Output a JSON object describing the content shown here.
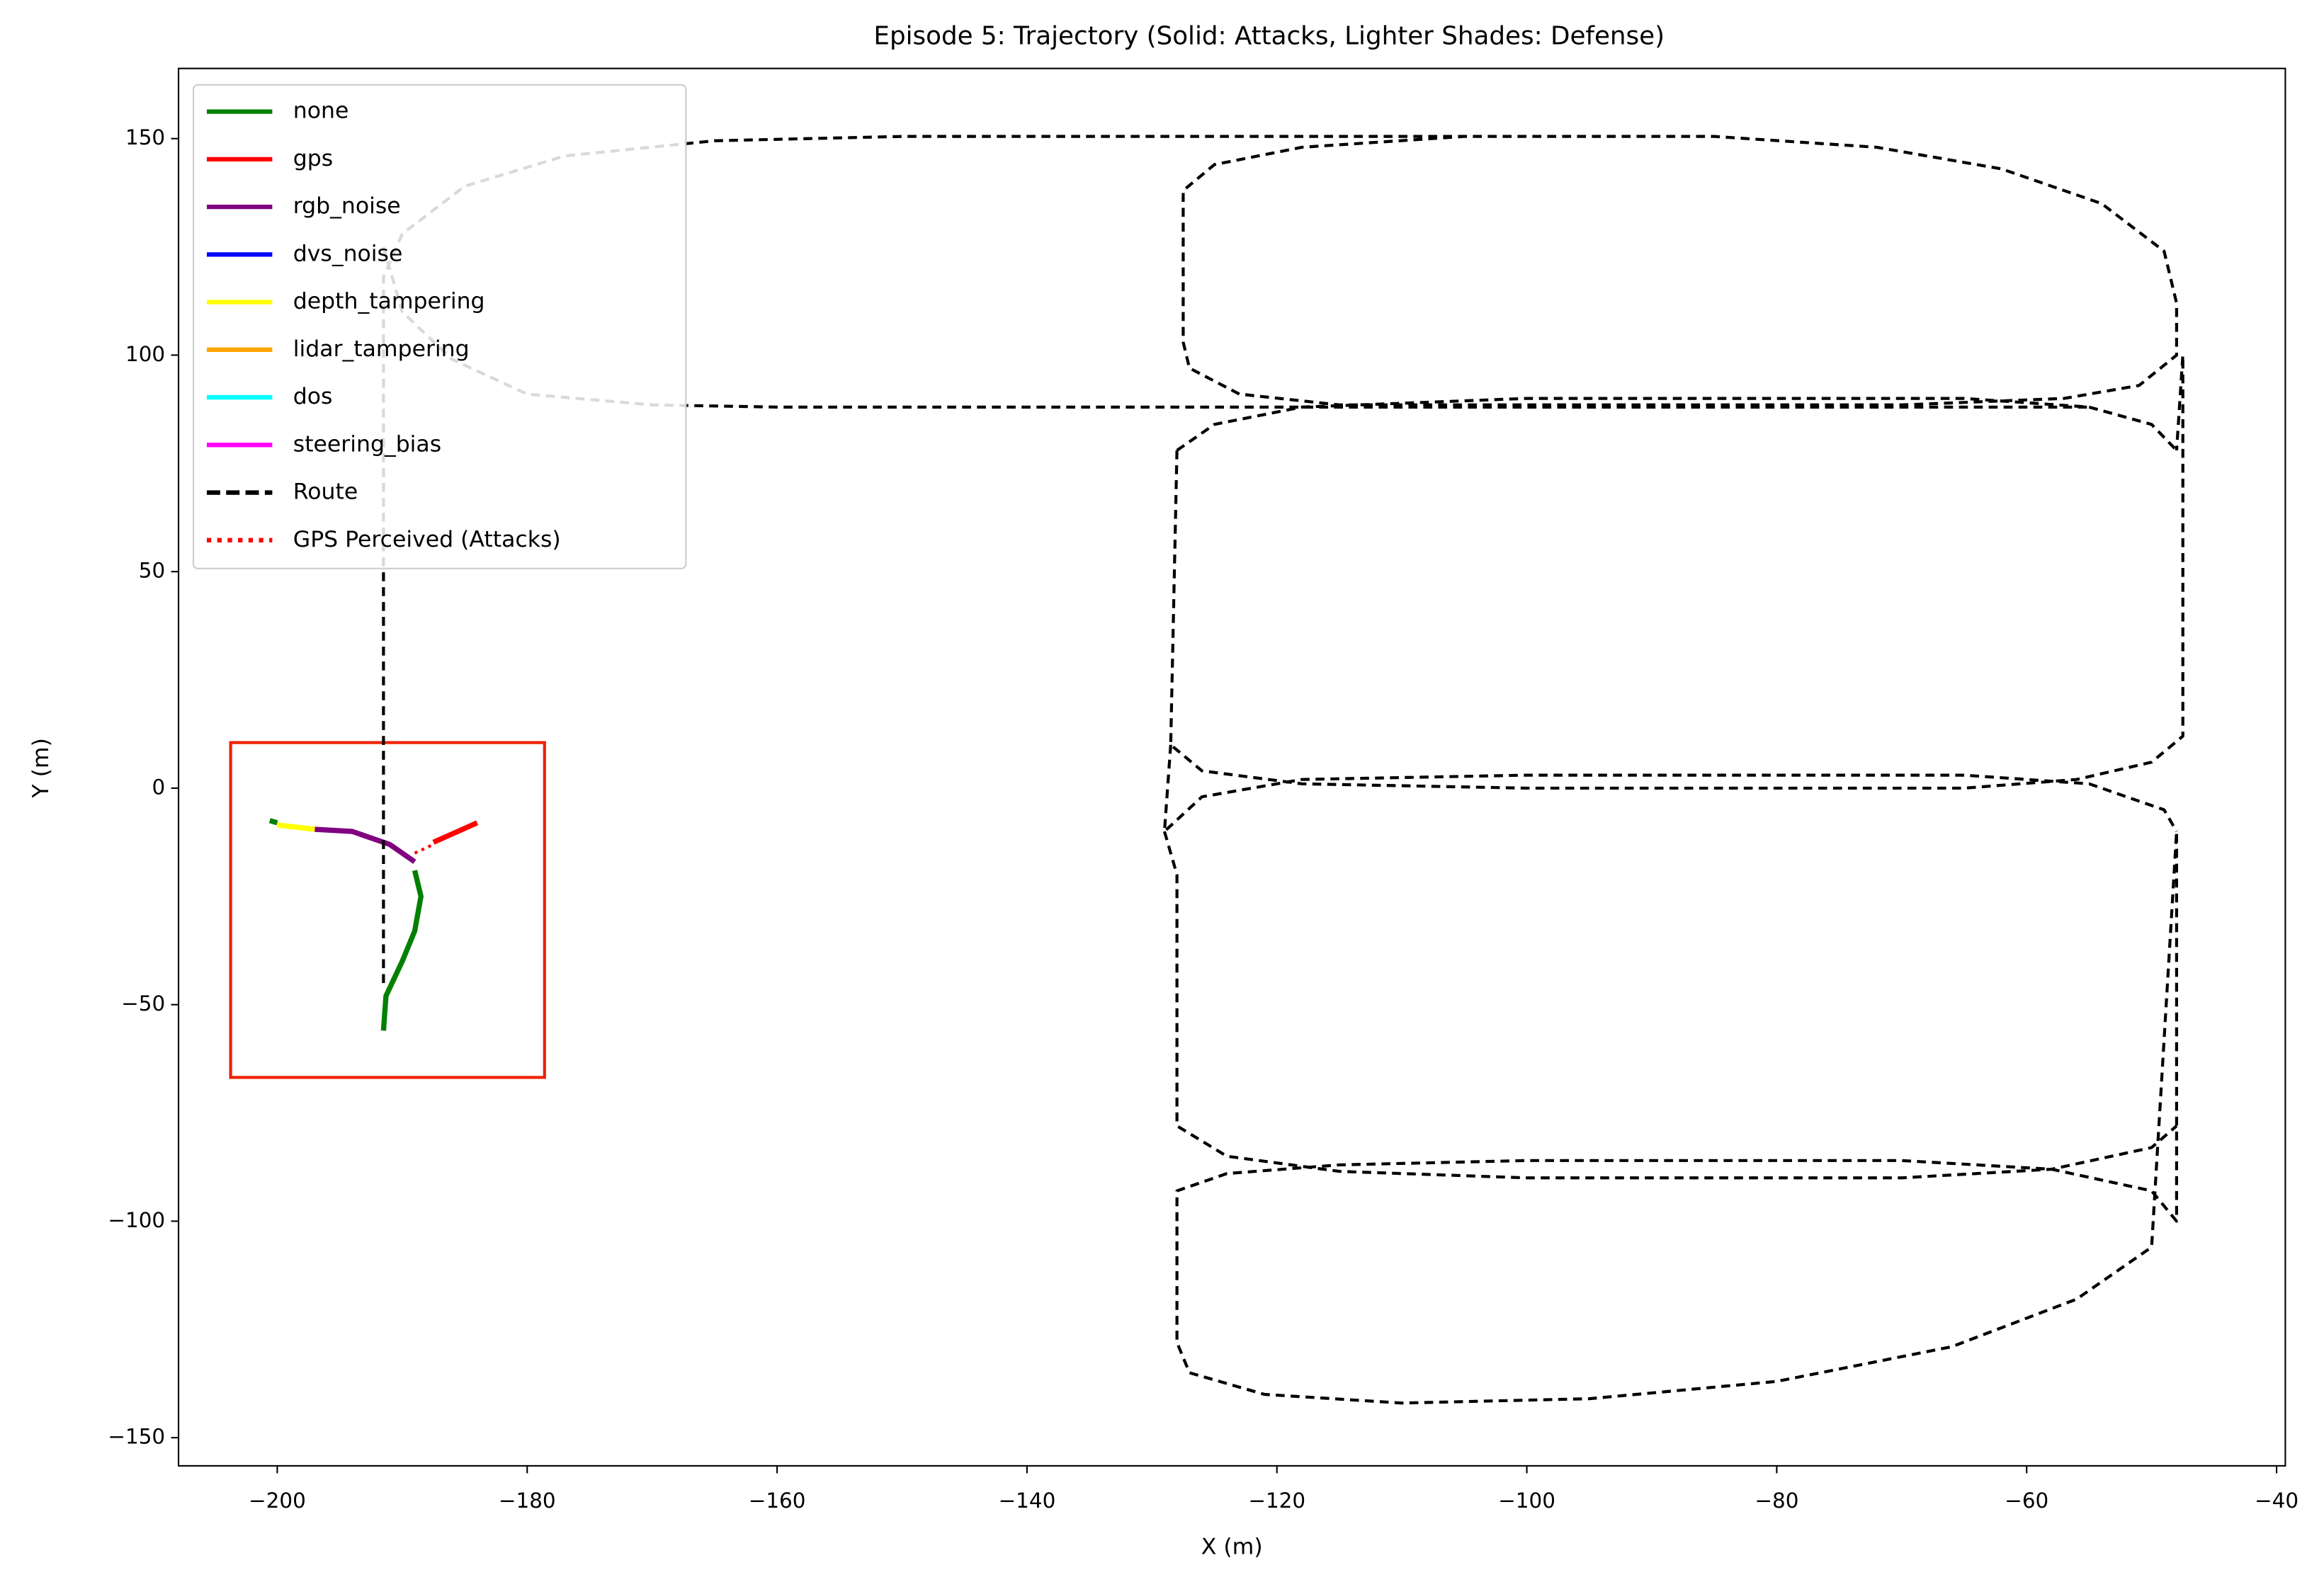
{
  "chart_data": {
    "type": "line",
    "title": "Episode 5: Trajectory (Solid: Attacks,  Lighter Shades: Defense)",
    "xlabel": "X (m)",
    "ylabel": "Y (m)",
    "xlim": [
      -207.9,
      -39.3
    ],
    "ylim": [
      -156.5,
      166.2
    ],
    "xticks": [
      {
        "value": -200,
        "label": "−200"
      },
      {
        "value": -180,
        "label": "−180"
      },
      {
        "value": -160,
        "label": "−160"
      },
      {
        "value": -140,
        "label": "−140"
      },
      {
        "value": -120,
        "label": "−120"
      },
      {
        "value": -100,
        "label": "−100"
      },
      {
        "value": -80,
        "label": "−80"
      },
      {
        "value": -60,
        "label": "−60"
      },
      {
        "value": -40,
        "label": "−40"
      }
    ],
    "yticks": [
      {
        "value": -150,
        "label": "−150"
      },
      {
        "value": -100,
        "label": "−100"
      },
      {
        "value": -50,
        "label": "−50"
      },
      0,
      50,
      100,
      150
    ],
    "legend": "upper left",
    "series": [
      {
        "name": "none",
        "color": "#008000",
        "linestyle": "solid",
        "x": [
          -191.5,
          -191.3,
          -190,
          -189,
          -188.5,
          -189,
          null,
          -200.6,
          -200
        ],
        "y": [
          -56,
          -48,
          -40,
          -33,
          -25,
          -19,
          null,
          -7.5,
          -8
        ]
      },
      {
        "name": "gps",
        "color": "#ff0000",
        "linestyle": "solid",
        "x": [
          -187.5,
          -184
        ],
        "y": [
          -12.5,
          -8
        ]
      },
      {
        "name": "rgb_noise",
        "color": "#800080",
        "linestyle": "solid",
        "x": [
          -189,
          -191,
          -194,
          -197
        ],
        "y": [
          -17,
          -13,
          -10,
          -9.5
        ]
      },
      {
        "name": "dvs_noise",
        "color": "#0000ff",
        "linestyle": "solid",
        "x": [],
        "y": []
      },
      {
        "name": "depth_tampering",
        "color": "#ffff00",
        "linestyle": "solid",
        "x": [
          -197,
          -200
        ],
        "y": [
          -9.5,
          -8.5
        ]
      },
      {
        "name": "lidar_tampering",
        "color": "#ffa500",
        "linestyle": "solid",
        "x": [],
        "y": []
      },
      {
        "name": "dos",
        "color": "#00ffff",
        "linestyle": "solid",
        "x": [],
        "y": []
      },
      {
        "name": "steering_bias",
        "color": "#ff00ff",
        "linestyle": "solid",
        "x": [],
        "y": []
      },
      {
        "name": "Route",
        "color": "#000000",
        "linestyle": "dashed",
        "x": [
          -191.5,
          -191.5,
          -190,
          -185,
          -177,
          -165,
          -150,
          -85,
          -72,
          -62,
          -54,
          -49,
          -48,
          -48,
          -51,
          -57,
          -70,
          -115,
          -123,
          -127,
          -127.5,
          -127.5,
          -125,
          -118,
          -105,
          -85,
          null,
          -191.5,
          -190,
          -186,
          -180,
          -170,
          -160,
          -55,
          null,
          -128,
          -125,
          -118,
          -100,
          -65,
          -55,
          -50,
          -48,
          null,
          -128,
          -128.5,
          -126,
          -118,
          -100,
          -65,
          -56,
          -50,
          -47.5,
          -47.5,
          -48,
          null,
          -128.5,
          -129,
          -126,
          -118,
          -100,
          -65,
          -55,
          -49,
          -48,
          null,
          -129,
          -128,
          -128,
          -124,
          -115,
          -100,
          -70,
          -58,
          -50,
          -48,
          null,
          -128,
          -128,
          -124,
          -115,
          -100,
          -70,
          -58,
          -50,
          -48,
          -48,
          -50,
          -56,
          -66,
          -80,
          -95,
          -110,
          -121,
          -127,
          -128,
          -128
        ],
        "y": [
          -45,
          118,
          128,
          139,
          146,
          149.5,
          150.5,
          150.5,
          148,
          143,
          135,
          124,
          112,
          100,
          93,
          90,
          88.5,
          88.5,
          91,
          97,
          103,
          138,
          144,
          148,
          150.5,
          150.5,
          null,
          125,
          110,
          99,
          91,
          88.5,
          88,
          88,
          null,
          78,
          84,
          88,
          90,
          90,
          88,
          84,
          78,
          null,
          78,
          10,
          4,
          1,
          0,
          0,
          2,
          6,
          12,
          100,
          78,
          null,
          10,
          -10,
          -2,
          2,
          3,
          3,
          1,
          -5,
          -10,
          null,
          -10,
          -20,
          -78,
          -85,
          -88.5,
          -90,
          -90,
          -88,
          -83,
          -78,
          null,
          -100,
          -93,
          -89,
          -87,
          -86,
          -86,
          -88,
          -93,
          -100,
          -10,
          -106,
          -118,
          -129,
          -137,
          -141,
          -142,
          -140,
          -135,
          -128,
          -100
        ]
      },
      {
        "name": "GPS Perceived (Attacks)",
        "color": "#ff0000",
        "linestyle": "dotted",
        "x": [
          -189,
          -187.5
        ],
        "y": [
          -15,
          -13
        ]
      }
    ]
  }
}
